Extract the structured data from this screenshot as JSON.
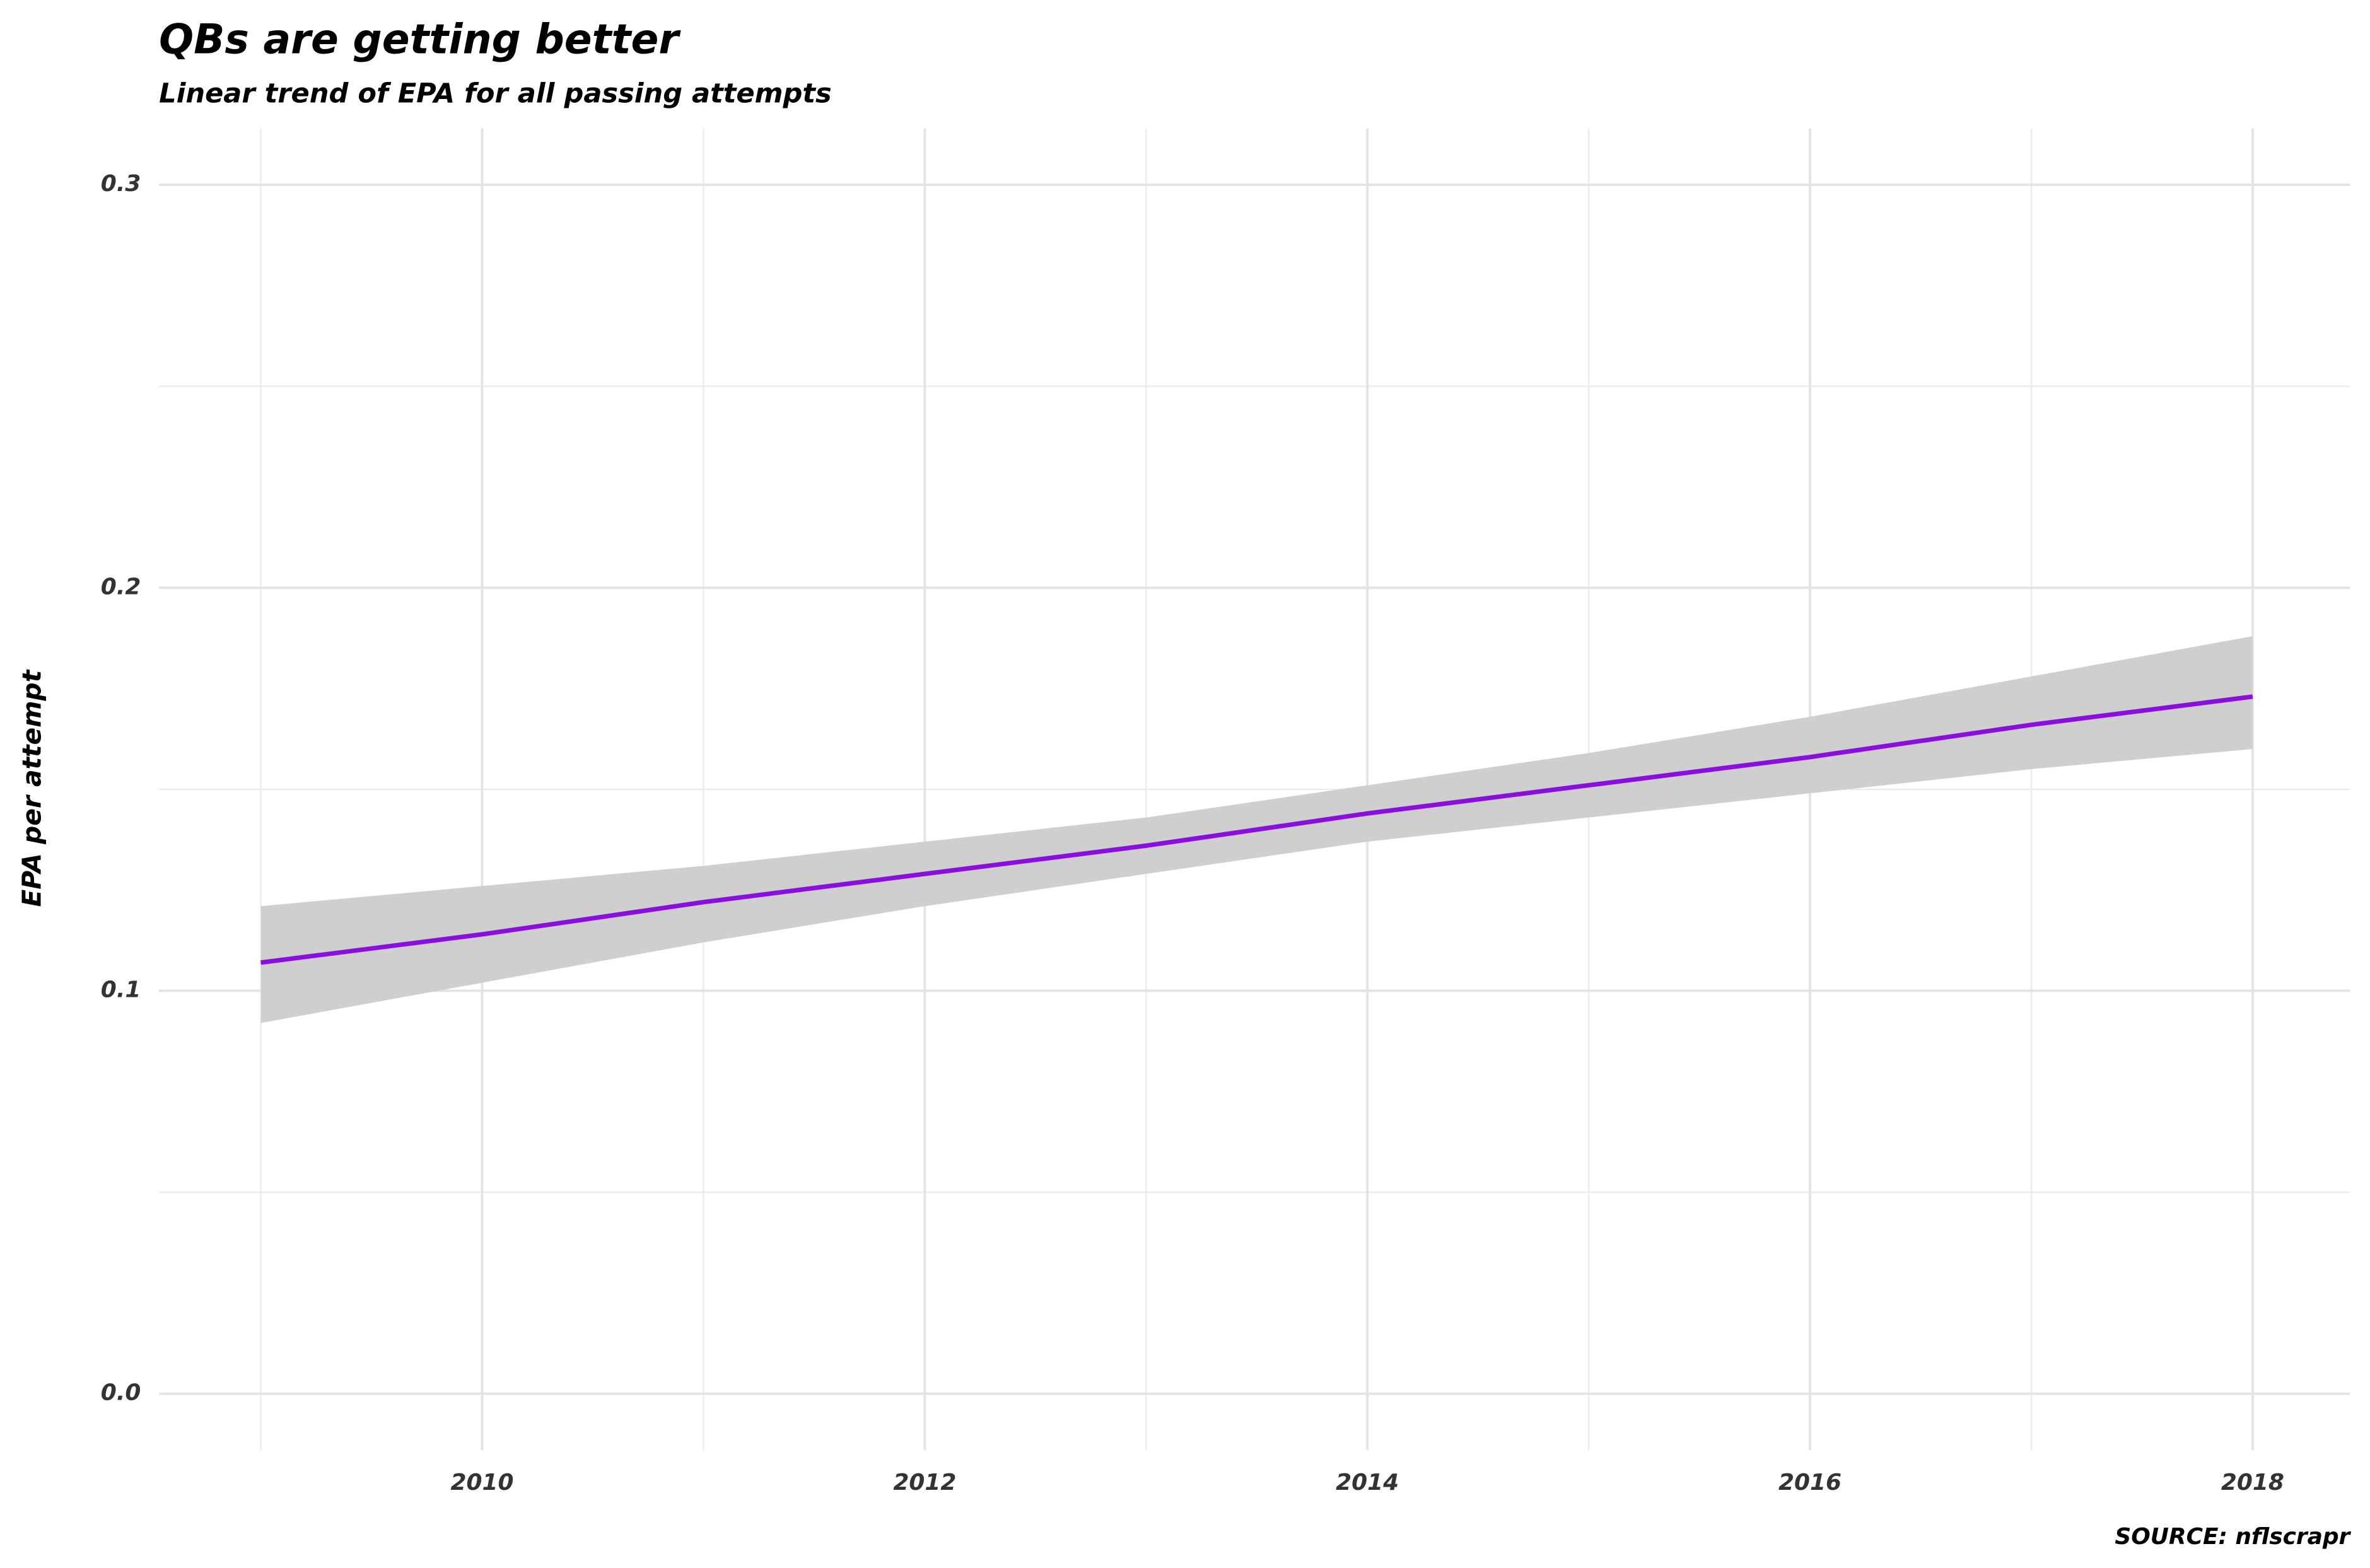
{
  "chart_data": {
    "type": "line",
    "title": "QBs are getting better",
    "subtitle": "Linear trend of EPA for all passing attempts",
    "y_label": "EPA per attempt",
    "caption": "SOURCE: nflscrapr",
    "x": [
      2009,
      2010,
      2011,
      2012,
      2013,
      2014,
      2015,
      2016,
      2017,
      2018
    ],
    "values": [
      0.107,
      0.114,
      0.122,
      0.129,
      0.136,
      0.144,
      0.151,
      0.158,
      0.166,
      0.173
    ],
    "lower": [
      0.092,
      0.102,
      0.112,
      0.121,
      0.129,
      0.137,
      0.143,
      0.149,
      0.155,
      0.16
    ],
    "upper": [
      0.121,
      0.126,
      0.131,
      0.137,
      0.143,
      0.151,
      0.159,
      0.168,
      0.178,
      0.188
    ],
    "color": "#8a0ee0",
    "band_color": "#cfcfcf",
    "xlim": [
      2008.54,
      2018.44
    ],
    "ylim": [
      -0.014,
      0.314
    ],
    "xticks": [
      2010,
      2012,
      2014,
      2016,
      2018
    ],
    "yticks": [
      {
        "value": 0,
        "label": "0.0"
      },
      0.1,
      0.2,
      0.3
    ],
    "x_minor_ticks": [
      2009,
      2011,
      2013,
      2015,
      2017
    ],
    "y_minor_ticks": [
      0.05,
      0.15,
      0.25
    ],
    "grid": true
  }
}
